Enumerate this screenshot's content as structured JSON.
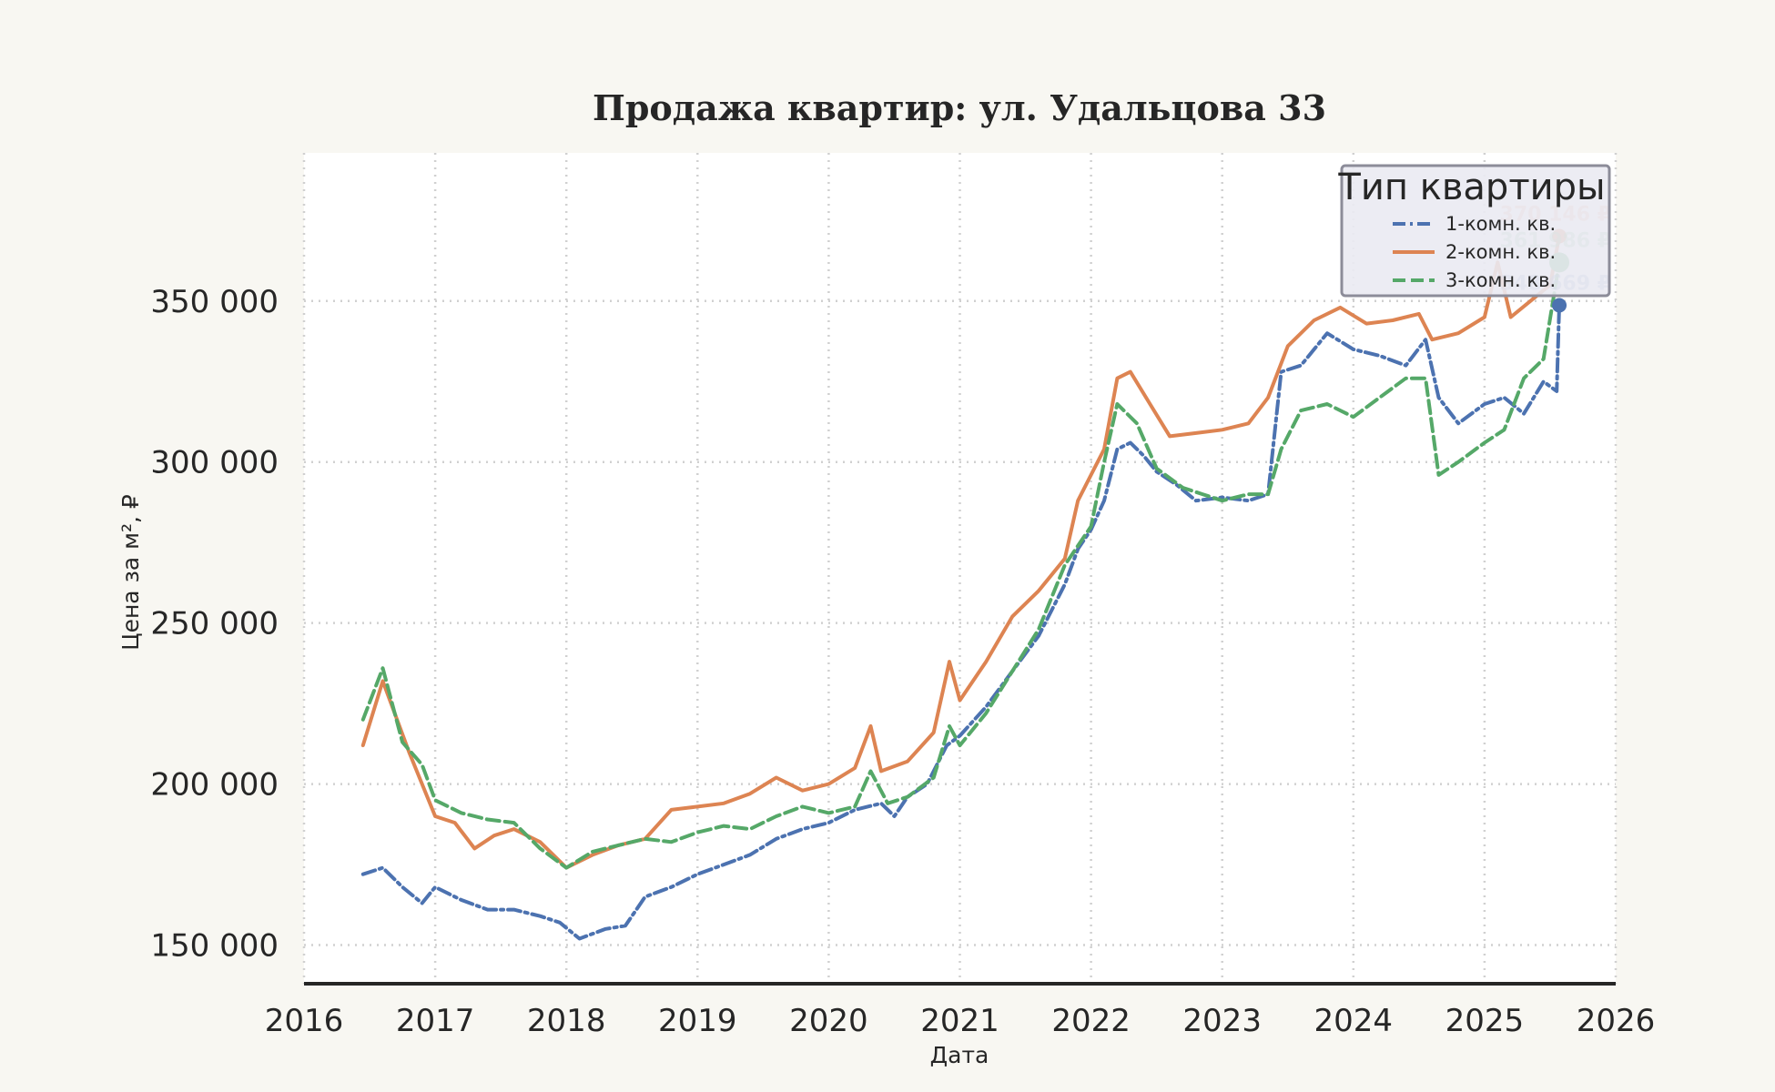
{
  "chart_data": {
    "type": "line",
    "title": "Продажа квартир: ул. Удальцова 33",
    "xlabel": "Дата",
    "ylabel": "Цена за м², ₽",
    "xlim": [
      2016,
      2026
    ],
    "ylim": [
      138000,
      396000
    ],
    "x_ticks": [
      "2016",
      "2017",
      "2018",
      "2019",
      "2020",
      "2021",
      "2022",
      "2023",
      "2024",
      "2025",
      "2026"
    ],
    "y_ticks": [
      {
        "value": 150000,
        "label": "150 000"
      },
      {
        "value": 200000,
        "label": "200 000"
      },
      {
        "value": 250000,
        "label": "250 000"
      },
      {
        "value": 300000,
        "label": "300 000"
      },
      {
        "value": 350000,
        "label": "350 000"
      }
    ],
    "grid": true,
    "legend": {
      "title": "Тип квартиры",
      "position": "top-right"
    },
    "series": [
      {
        "name": "1-комн. кв.",
        "color": "#4c72b0",
        "dash": "dashdot",
        "end_label": "348 669 ₽",
        "end_value": 348669,
        "points": [
          [
            2016.45,
            172000
          ],
          [
            2016.6,
            174000
          ],
          [
            2016.75,
            168000
          ],
          [
            2016.9,
            163000
          ],
          [
            2017.0,
            168000
          ],
          [
            2017.2,
            164000
          ],
          [
            2017.4,
            161000
          ],
          [
            2017.6,
            161000
          ],
          [
            2017.8,
            159000
          ],
          [
            2017.95,
            157000
          ],
          [
            2018.1,
            152000
          ],
          [
            2018.3,
            155000
          ],
          [
            2018.45,
            156000
          ],
          [
            2018.6,
            165000
          ],
          [
            2018.8,
            168000
          ],
          [
            2019.0,
            172000
          ],
          [
            2019.2,
            175000
          ],
          [
            2019.4,
            178000
          ],
          [
            2019.6,
            183000
          ],
          [
            2019.8,
            186000
          ],
          [
            2020.0,
            188000
          ],
          [
            2020.2,
            192000
          ],
          [
            2020.4,
            194000
          ],
          [
            2020.5,
            190000
          ],
          [
            2020.6,
            196000
          ],
          [
            2020.75,
            200000
          ],
          [
            2020.9,
            212000
          ],
          [
            2021.0,
            215000
          ],
          [
            2021.2,
            224000
          ],
          [
            2021.4,
            235000
          ],
          [
            2021.6,
            246000
          ],
          [
            2021.8,
            262000
          ],
          [
            2021.9,
            273000
          ],
          [
            2022.0,
            279000
          ],
          [
            2022.1,
            288000
          ],
          [
            2022.2,
            304000
          ],
          [
            2022.3,
            306000
          ],
          [
            2022.4,
            302000
          ],
          [
            2022.5,
            297000
          ],
          [
            2022.65,
            293000
          ],
          [
            2022.8,
            288000
          ],
          [
            2023.0,
            289000
          ],
          [
            2023.2,
            288000
          ],
          [
            2023.35,
            290000
          ],
          [
            2023.45,
            328000
          ],
          [
            2023.6,
            330000
          ],
          [
            2023.8,
            340000
          ],
          [
            2024.0,
            335000
          ],
          [
            2024.2,
            333000
          ],
          [
            2024.4,
            330000
          ],
          [
            2024.55,
            338000
          ],
          [
            2024.65,
            320000
          ],
          [
            2024.8,
            312000
          ],
          [
            2025.0,
            318000
          ],
          [
            2025.15,
            320000
          ],
          [
            2025.3,
            315000
          ],
          [
            2025.45,
            325000
          ],
          [
            2025.55,
            322000
          ],
          [
            2025.57,
            348669
          ]
        ]
      },
      {
        "name": "2-комн. кв.",
        "color": "#dd8452",
        "dash": "solid",
        "end_label": "370 146 ₽",
        "end_value": 370146,
        "points": [
          [
            2016.45,
            212000
          ],
          [
            2016.6,
            232000
          ],
          [
            2016.8,
            210000
          ],
          [
            2016.9,
            200000
          ],
          [
            2017.0,
            190000
          ],
          [
            2017.15,
            188000
          ],
          [
            2017.3,
            180000
          ],
          [
            2017.45,
            184000
          ],
          [
            2017.6,
            186000
          ],
          [
            2017.8,
            182000
          ],
          [
            2018.0,
            174000
          ],
          [
            2018.2,
            178000
          ],
          [
            2018.4,
            181000
          ],
          [
            2018.6,
            183000
          ],
          [
            2018.8,
            192000
          ],
          [
            2019.0,
            193000
          ],
          [
            2019.2,
            194000
          ],
          [
            2019.4,
            197000
          ],
          [
            2019.6,
            202000
          ],
          [
            2019.8,
            198000
          ],
          [
            2020.0,
            200000
          ],
          [
            2020.2,
            205000
          ],
          [
            2020.32,
            218000
          ],
          [
            2020.4,
            204000
          ],
          [
            2020.6,
            207000
          ],
          [
            2020.8,
            216000
          ],
          [
            2020.92,
            238000
          ],
          [
            2021.0,
            226000
          ],
          [
            2021.2,
            238000
          ],
          [
            2021.4,
            252000
          ],
          [
            2021.6,
            260000
          ],
          [
            2021.8,
            270000
          ],
          [
            2021.9,
            288000
          ],
          [
            2022.0,
            296000
          ],
          [
            2022.1,
            304000
          ],
          [
            2022.2,
            326000
          ],
          [
            2022.3,
            328000
          ],
          [
            2022.45,
            318000
          ],
          [
            2022.6,
            308000
          ],
          [
            2022.8,
            309000
          ],
          [
            2023.0,
            310000
          ],
          [
            2023.2,
            312000
          ],
          [
            2023.35,
            320000
          ],
          [
            2023.5,
            336000
          ],
          [
            2023.7,
            344000
          ],
          [
            2023.9,
            348000
          ],
          [
            2024.1,
            343000
          ],
          [
            2024.3,
            344000
          ],
          [
            2024.5,
            346000
          ],
          [
            2024.6,
            338000
          ],
          [
            2024.8,
            340000
          ],
          [
            2025.0,
            345000
          ],
          [
            2025.1,
            362000
          ],
          [
            2025.2,
            345000
          ],
          [
            2025.35,
            350000
          ],
          [
            2025.5,
            355000
          ],
          [
            2025.57,
            370146
          ]
        ]
      },
      {
        "name": "3-комн. кв.",
        "color": "#55a868",
        "dash": "dashed",
        "end_label": "361 986 ₽",
        "end_value": 361986,
        "points": [
          [
            2016.45,
            220000
          ],
          [
            2016.6,
            236000
          ],
          [
            2016.75,
            213000
          ],
          [
            2016.9,
            206000
          ],
          [
            2017.0,
            195000
          ],
          [
            2017.2,
            191000
          ],
          [
            2017.4,
            189000
          ],
          [
            2017.6,
            188000
          ],
          [
            2017.8,
            180000
          ],
          [
            2018.0,
            174000
          ],
          [
            2018.2,
            179000
          ],
          [
            2018.4,
            181000
          ],
          [
            2018.6,
            183000
          ],
          [
            2018.8,
            182000
          ],
          [
            2019.0,
            185000
          ],
          [
            2019.2,
            187000
          ],
          [
            2019.4,
            186000
          ],
          [
            2019.6,
            190000
          ],
          [
            2019.8,
            193000
          ],
          [
            2020.0,
            191000
          ],
          [
            2020.2,
            193000
          ],
          [
            2020.32,
            204000
          ],
          [
            2020.45,
            194000
          ],
          [
            2020.6,
            196000
          ],
          [
            2020.8,
            202000
          ],
          [
            2020.92,
            218000
          ],
          [
            2021.0,
            212000
          ],
          [
            2021.2,
            222000
          ],
          [
            2021.4,
            235000
          ],
          [
            2021.6,
            248000
          ],
          [
            2021.8,
            268000
          ],
          [
            2022.0,
            280000
          ],
          [
            2022.1,
            300000
          ],
          [
            2022.2,
            318000
          ],
          [
            2022.35,
            312000
          ],
          [
            2022.5,
            298000
          ],
          [
            2022.7,
            292000
          ],
          [
            2022.85,
            290000
          ],
          [
            2023.0,
            288000
          ],
          [
            2023.2,
            290000
          ],
          [
            2023.35,
            290000
          ],
          [
            2023.45,
            304000
          ],
          [
            2023.6,
            316000
          ],
          [
            2023.8,
            318000
          ],
          [
            2024.0,
            314000
          ],
          [
            2024.2,
            320000
          ],
          [
            2024.4,
            326000
          ],
          [
            2024.55,
            326000
          ],
          [
            2024.65,
            296000
          ],
          [
            2024.8,
            300000
          ],
          [
            2025.0,
            306000
          ],
          [
            2025.15,
            310000
          ],
          [
            2025.3,
            326000
          ],
          [
            2025.45,
            332000
          ],
          [
            2025.57,
            361986
          ]
        ]
      }
    ]
  }
}
